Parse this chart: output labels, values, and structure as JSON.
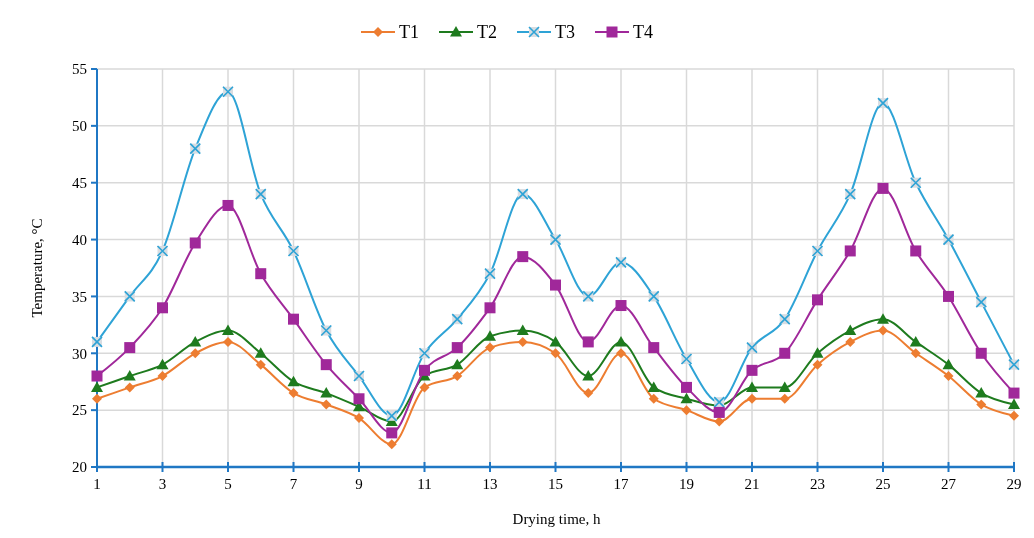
{
  "chart_data": {
    "type": "line",
    "xlabel": "Drying time, h",
    "ylabel": "Temperature, °C",
    "x": [
      1,
      2,
      3,
      4,
      5,
      6,
      7,
      8,
      9,
      10,
      11,
      12,
      13,
      14,
      15,
      16,
      17,
      18,
      19,
      20,
      21,
      22,
      23,
      24,
      25,
      26,
      27,
      28,
      29
    ],
    "xlim": [
      1,
      29
    ],
    "xticks": [
      1,
      3,
      5,
      7,
      9,
      11,
      13,
      15,
      17,
      19,
      21,
      23,
      25,
      27,
      29
    ],
    "ylim": [
      20,
      55
    ],
    "yticks": [
      20,
      25,
      30,
      35,
      40,
      45,
      50,
      55
    ],
    "grid": true,
    "legend": "top",
    "series": [
      {
        "name": "T1",
        "color": "#ed7d31",
        "marker": "diamond",
        "values": [
          26,
          27,
          28,
          30,
          31,
          29,
          26.5,
          25.5,
          24.3,
          22,
          27,
          28,
          30.5,
          31,
          30,
          26.5,
          30,
          26,
          25,
          24,
          26,
          26,
          29,
          31,
          32,
          30,
          28,
          25.5,
          24.5
        ]
      },
      {
        "name": "T2",
        "color": "#1e7b1e",
        "marker": "triangle",
        "values": [
          27,
          28,
          29,
          31,
          32,
          30,
          27.5,
          26.5,
          25.3,
          24,
          28,
          29,
          31.5,
          32,
          31,
          28,
          31,
          27,
          26,
          25.4,
          27,
          27,
          30,
          32,
          33,
          31,
          29,
          26.5,
          25.5
        ]
      },
      {
        "name": "T3",
        "color": "#2ea3d6",
        "marker": "cross",
        "values": [
          31,
          35,
          39,
          48,
          53,
          44,
          39,
          32,
          28,
          24.5,
          30,
          33,
          37,
          44,
          40,
          35,
          38,
          35,
          29.5,
          25.7,
          30.5,
          33,
          39,
          44,
          52,
          45,
          40,
          34.5,
          29
        ]
      },
      {
        "name": "T4",
        "color": "#a0289a",
        "marker": "square",
        "values": [
          28,
          30.5,
          34,
          39.7,
          43,
          37,
          33,
          29,
          26,
          23,
          28.5,
          30.5,
          34,
          38.5,
          36,
          31,
          34.2,
          30.5,
          27,
          24.8,
          28.5,
          30,
          34.7,
          39,
          44.5,
          39,
          35,
          30,
          26.5
        ]
      }
    ]
  }
}
